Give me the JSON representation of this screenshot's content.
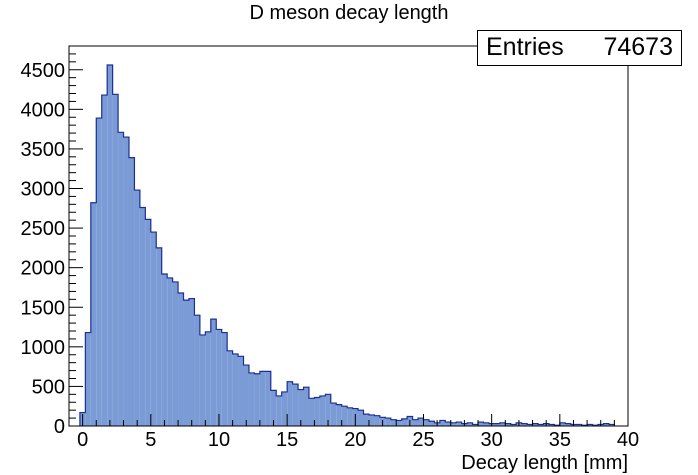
{
  "chart_data": {
    "type": "bar",
    "title": "D meson decay length",
    "xlabel": "Decay length [mm]",
    "ylabel": "",
    "xlim": [
      -1,
      40
    ],
    "ylim": [
      0,
      4800
    ],
    "bin_width": 0.4,
    "x_ticks": [
      "0",
      "5",
      "10",
      "15",
      "20",
      "25",
      "30",
      "35",
      "40"
    ],
    "y_ticks": [
      "0",
      "500",
      "1000",
      "1500",
      "2000",
      "2500",
      "3000",
      "3500",
      "4000",
      "4500"
    ],
    "colors": {
      "fill": "#7b9bd6",
      "line": "#1a2f8f"
    },
    "stats": {
      "label": "Entries",
      "value": "74673"
    },
    "x": [
      -0.2,
      0.2,
      0.6,
      1.0,
      1.4,
      1.8,
      2.2,
      2.6,
      3.0,
      3.4,
      3.8,
      4.2,
      4.6,
      5.0,
      5.4,
      5.8,
      6.2,
      6.6,
      7.0,
      7.4,
      7.8,
      8.2,
      8.6,
      9.0,
      9.4,
      9.8,
      10.2,
      10.6,
      11.0,
      11.4,
      11.8,
      12.2,
      12.6,
      13.0,
      13.4,
      13.8,
      14.2,
      14.6,
      15.0,
      15.4,
      15.8,
      16.2,
      16.6,
      17.0,
      17.4,
      17.8,
      18.2,
      18.6,
      19.0,
      19.4,
      19.8,
      20.2,
      20.6,
      21.0,
      21.4,
      21.8,
      22.2,
      22.6,
      23.0,
      23.4,
      23.8,
      24.2,
      24.6,
      25.0,
      25.4,
      25.8,
      26.2,
      26.6,
      27.0,
      27.4,
      27.8,
      28.2,
      28.6,
      29.0,
      29.4,
      29.8,
      30.2,
      30.6,
      31.0,
      31.4,
      31.8,
      32.2,
      32.6,
      33.0,
      33.4,
      33.8,
      34.2,
      34.6,
      35.0,
      35.4,
      35.8,
      36.2,
      36.6,
      37.0,
      37.4,
      37.8,
      38.2,
      38.6
    ],
    "values": [
      170,
      1180,
      2820,
      3890,
      4180,
      4560,
      4190,
      3710,
      3650,
      3390,
      2980,
      2760,
      2610,
      2450,
      2250,
      1920,
      1870,
      1820,
      1680,
      1590,
      1610,
      1400,
      1150,
      1190,
      1350,
      1220,
      1180,
      950,
      910,
      880,
      770,
      670,
      660,
      690,
      690,
      450,
      380,
      430,
      560,
      530,
      460,
      490,
      350,
      360,
      380,
      400,
      290,
      270,
      250,
      230,
      220,
      200,
      150,
      140,
      130,
      110,
      100,
      80,
      70,
      90,
      120,
      80,
      100,
      80,
      60,
      40,
      70,
      50,
      40,
      50,
      30,
      40,
      20,
      50,
      40,
      30,
      30,
      40,
      30,
      20,
      40,
      30,
      20,
      30,
      20,
      30,
      20,
      10,
      40,
      30,
      20,
      20,
      10,
      20,
      10,
      20,
      30,
      20
    ]
  }
}
